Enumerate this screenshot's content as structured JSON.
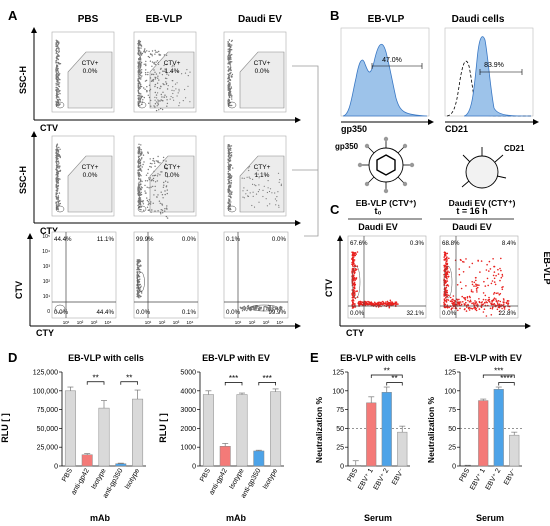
{
  "panels": {
    "A": {
      "letter": "A",
      "col_titles": [
        "PBS",
        "EB-VLP",
        "Daudi EV"
      ],
      "row1": {
        "ylabel": "SSC-H",
        "xlabel": "CTV",
        "gate_label": "CTV+",
        "pct": [
          "0.0%",
          "1.4%",
          "0.0%"
        ]
      },
      "row2": {
        "ylabel": "SSC-H",
        "xlabel": "CTY",
        "gate_label": "CTY+",
        "pct": [
          "0.0%",
          "0.0%",
          "1.1%"
        ]
      },
      "row3": {
        "ylabel": "CTV",
        "xlabel": "CTY",
        "quadrants": [
          {
            "tl": "44.4%",
            "tr": "11.1%",
            "bl": "0.0%",
            "br": "44.4%"
          },
          {
            "tl": "99.9%",
            "tr": "0.0%",
            "bl": "0.0%",
            "br": "0.1%"
          },
          {
            "tl": "0.1%",
            "tr": "0.0%",
            "bl": "0.0%",
            "br": "99.9%"
          }
        ],
        "ticks_y": [
          "10⁵",
          "10⁴",
          "10³",
          "10²",
          "10¹",
          "0"
        ],
        "ticks_x": [
          "10¹",
          "10²",
          "10³",
          "10⁴"
        ]
      }
    },
    "B": {
      "letter": "B",
      "titles": [
        "EB-VLP",
        "Daudi cells"
      ],
      "pcts": [
        "47.0%",
        "83.9%"
      ],
      "xlabels": [
        "gp350",
        "CD21"
      ],
      "vlp_label": "gp350",
      "vlp_caption": "EB-VLP (CTV⁺)",
      "ev_label": "CD21",
      "ev_caption": "Daudi EV (CTY⁺)"
    },
    "C": {
      "letter": "C",
      "time_labels": [
        "t₀",
        "t = 16 h"
      ],
      "titles": [
        "Daudi EV",
        "Daudi EV"
      ],
      "side_label": "EB-VLP",
      "ylabel": "CTV",
      "xlabel": "CTY",
      "quadrants": [
        {
          "tl": "67.6%",
          "tr": "0.3%",
          "bl": "0.0%",
          "br": "32.1%"
        },
        {
          "tl": "68.8%",
          "tr": "8.4%",
          "bl": "0.0%",
          "br": "22.8%"
        }
      ]
    },
    "D": {
      "letter": "D",
      "xlabel": "mAb",
      "ylabel": "RLU [ ]",
      "sig": [
        "**",
        "**",
        "***",
        "***"
      ]
    },
    "E": {
      "letter": "E",
      "xlabel": "Serum",
      "ylabel": "Neutralization %",
      "sig": [
        "**",
        "**",
        "***",
        "****"
      ]
    }
  },
  "chart_data": [
    {
      "type": "bar",
      "title": "EB-VLP with cells",
      "xlabel": "mAb",
      "ylabel": "RLU [ ]",
      "categories": [
        "PBS",
        "anti-gp42",
        "Isotype",
        "anti-gp350",
        "Isotype"
      ],
      "values": [
        100000,
        15000,
        77000,
        3000,
        89000
      ],
      "errors": [
        5000,
        1500,
        10000,
        800,
        12000
      ],
      "colors": [
        "#d9d9d9",
        "#f47a78",
        "#d9d9d9",
        "#4da3e8",
        "#d9d9d9"
      ],
      "ylim": [
        0,
        125000
      ],
      "yticks": [
        "0",
        "25,000",
        "50,000",
        "75,000",
        "100,000",
        "125,000"
      ],
      "ytick_values": [
        0,
        25000,
        50000,
        75000,
        100000,
        125000
      ]
    },
    {
      "type": "bar",
      "title": "EB-VLP with EV",
      "xlabel": "mAb",
      "ylabel": "RLU [ ]",
      "categories": [
        "PBS",
        "anti-gp42",
        "Isotype",
        "anti-gp350",
        "Isotype"
      ],
      "values": [
        3800,
        1050,
        3800,
        800,
        3950
      ],
      "errors": [
        200,
        150,
        80,
        40,
        150
      ],
      "colors": [
        "#d9d9d9",
        "#f47a78",
        "#d9d9d9",
        "#4da3e8",
        "#d9d9d9"
      ],
      "ylim": [
        0,
        5000
      ],
      "yticks": [
        "0",
        "1000",
        "2000",
        "3000",
        "4000",
        "5000"
      ],
      "ytick_values": [
        0,
        1000,
        2000,
        3000,
        4000,
        5000
      ]
    },
    {
      "type": "bar",
      "title": "EB-VLP with cells",
      "xlabel": "Serum",
      "ylabel": "Neutralization %",
      "categories": [
        "PBS",
        "EBV⁺ 1",
        "EBV⁺ 2",
        "EBV⁻"
      ],
      "values": [
        1,
        84,
        98,
        45
      ],
      "errors": [
        6,
        8,
        7,
        8
      ],
      "colors": [
        "#d9d9d9",
        "#f47a78",
        "#4da3e8",
        "#d9d9d9"
      ],
      "ylim": [
        0,
        125
      ],
      "yticks": [
        "0",
        "25",
        "50",
        "75",
        "100",
        "125"
      ],
      "ytick_values": [
        0,
        25,
        50,
        75,
        100,
        125
      ],
      "reference_line": 50
    },
    {
      "type": "bar",
      "title": "EB-VLP with EV",
      "xlabel": "Serum",
      "ylabel": "Neutralization %",
      "categories": [
        "PBS",
        "EBV⁺ 1",
        "EBV⁺ 2",
        "EBV⁻"
      ],
      "values": [
        0,
        87,
        102,
        41
      ],
      "errors": [
        1,
        2,
        3,
        4
      ],
      "colors": [
        "#d9d9d9",
        "#f47a78",
        "#4da3e8",
        "#d9d9d9"
      ],
      "ylim": [
        0,
        125
      ],
      "yticks": [
        "0",
        "25",
        "50",
        "75",
        "100",
        "125"
      ],
      "ytick_values": [
        0,
        25,
        50,
        75,
        100,
        125
      ],
      "reference_line": 50
    }
  ]
}
